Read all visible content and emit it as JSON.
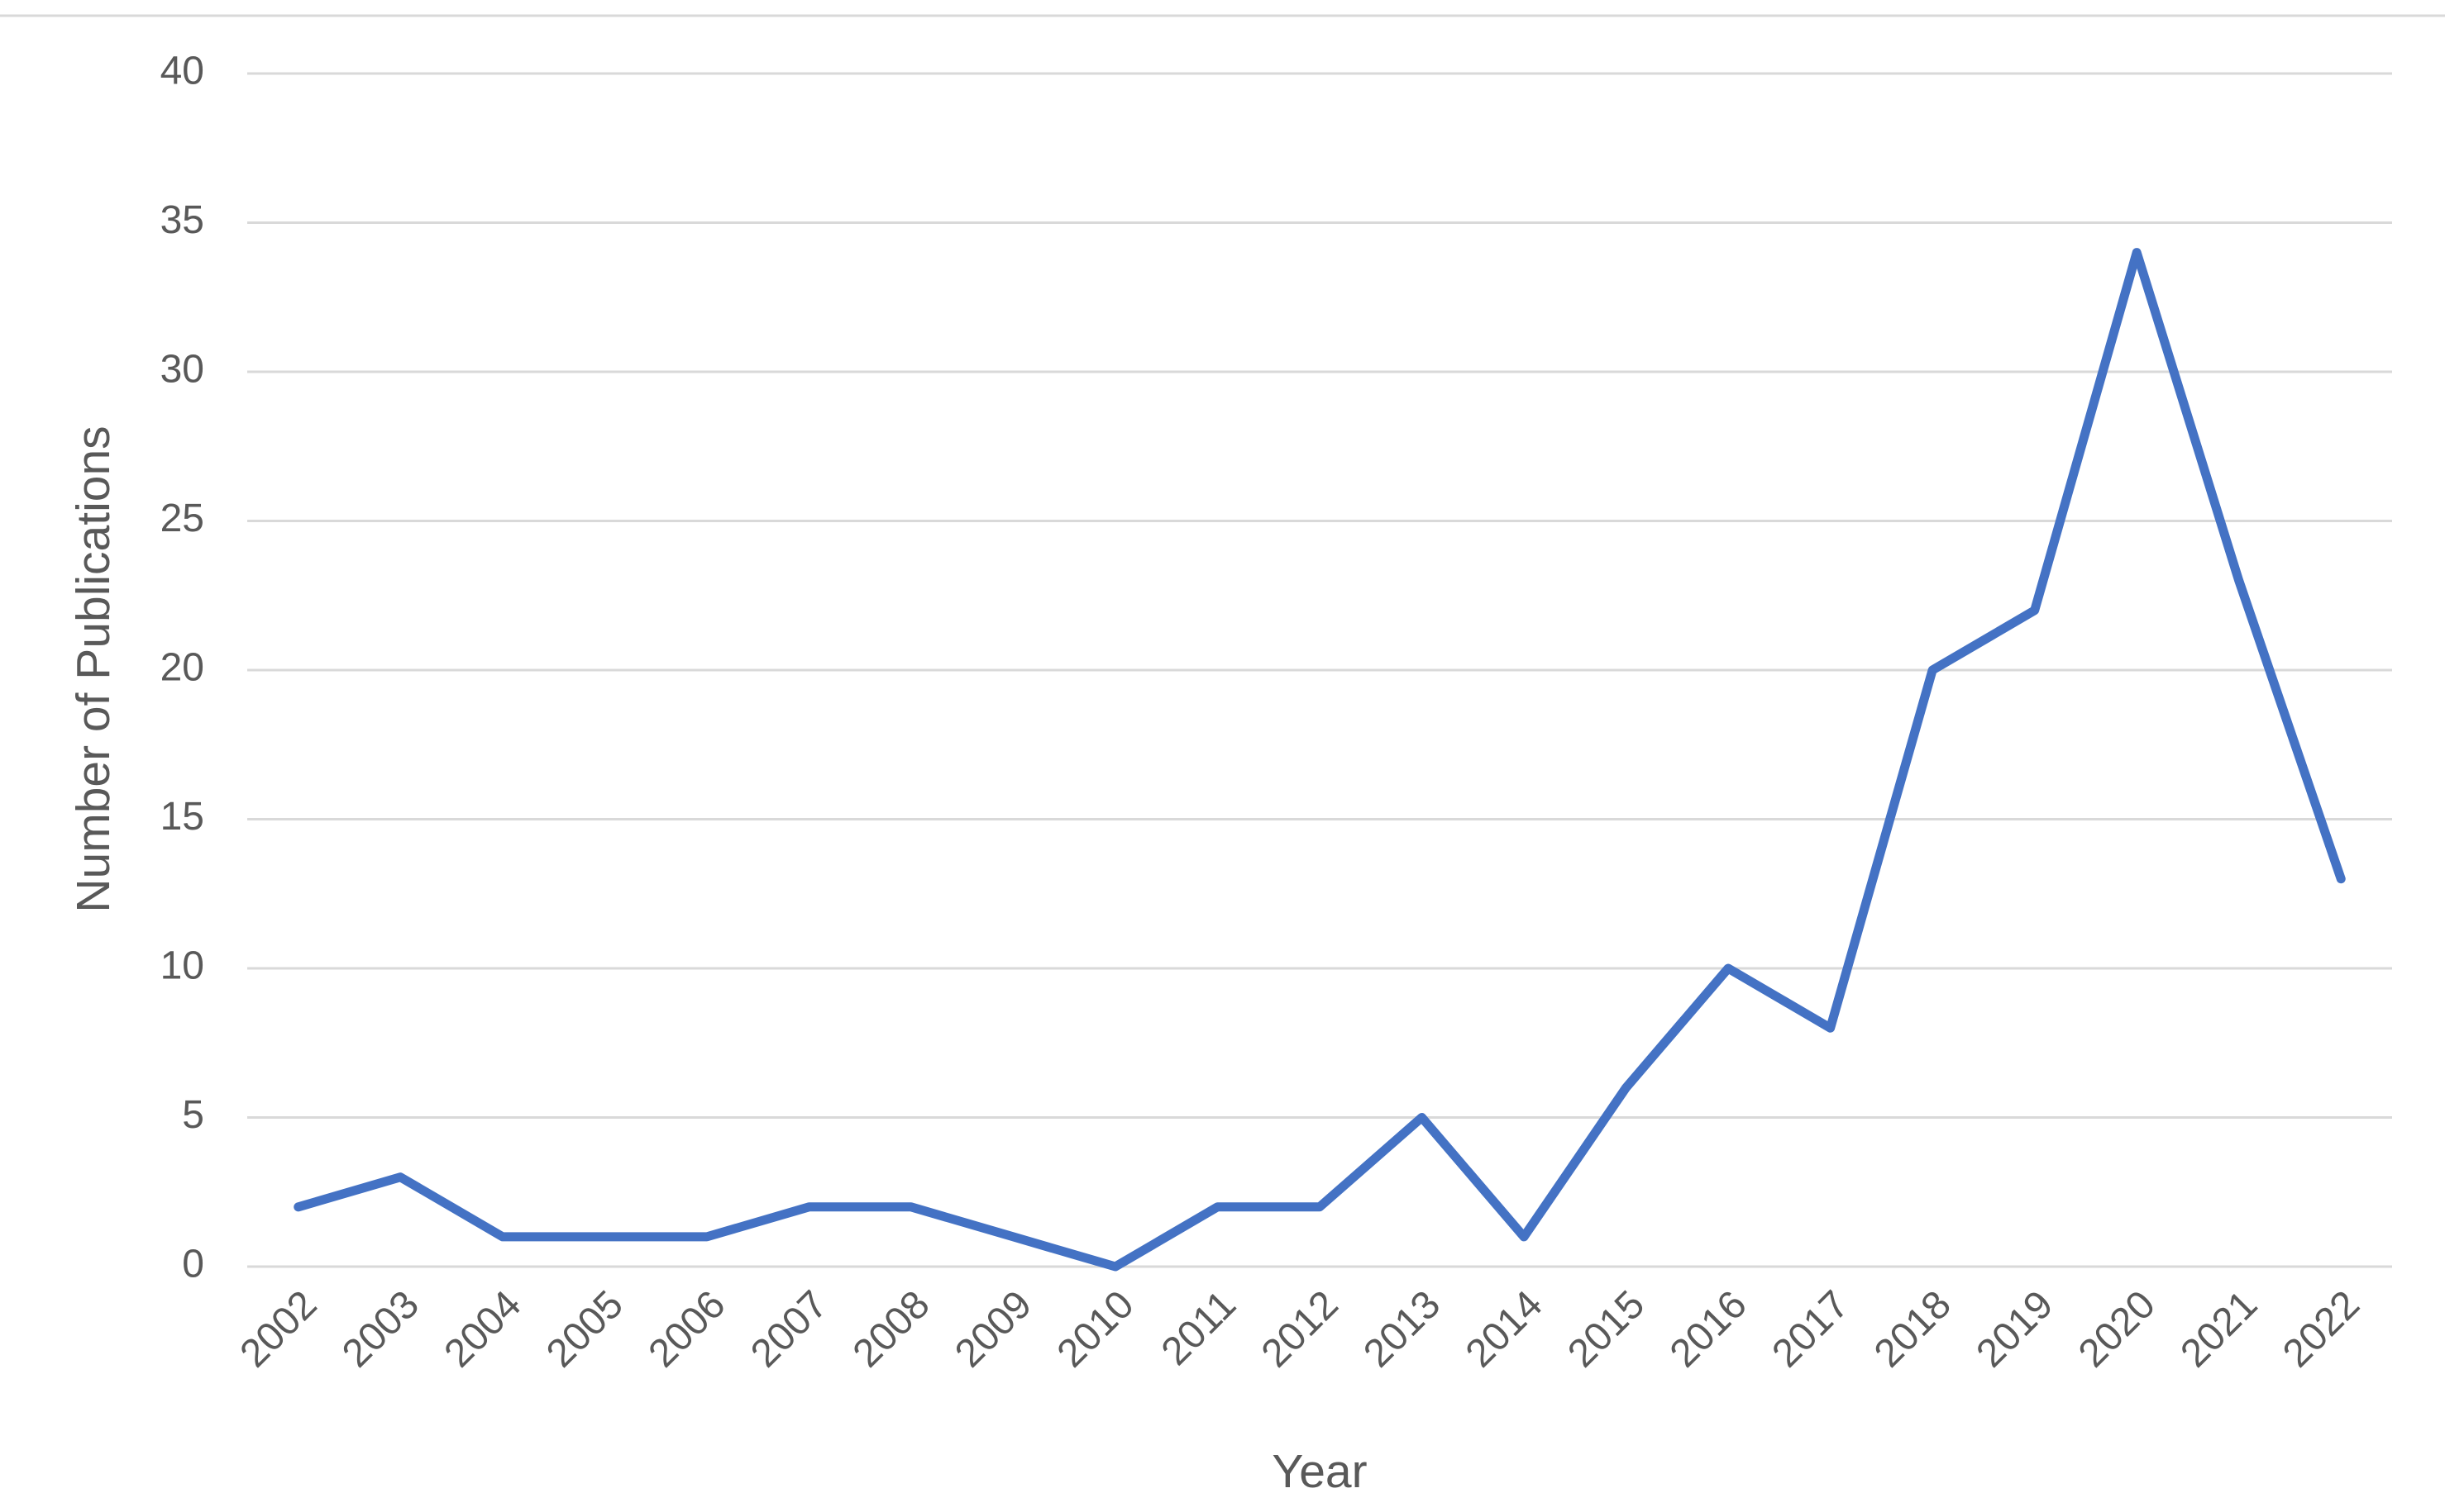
{
  "chart_data": {
    "type": "line",
    "x_label": "Year",
    "y_label": "Number of Publications",
    "categories": [
      "2002",
      "2003",
      "2004",
      "2005",
      "2006",
      "2007",
      "2008",
      "2009",
      "2010",
      "2011",
      "2012",
      "2013",
      "2014",
      "2015",
      "2016",
      "2017",
      "2018",
      "2019",
      "2020",
      "2021",
      "2022"
    ],
    "series": [
      {
        "color": "#4472c4",
        "values": [
          2,
          3,
          1,
          1,
          1,
          2,
          2,
          1,
          0,
          2,
          2,
          5,
          1,
          6,
          10,
          8,
          20,
          22,
          34,
          23,
          13
        ]
      }
    ],
    "ylim": [
      0,
      40
    ],
    "yticks": [
      0,
      5,
      10,
      15,
      20,
      25,
      30,
      35,
      40
    ],
    "grid": true
  }
}
